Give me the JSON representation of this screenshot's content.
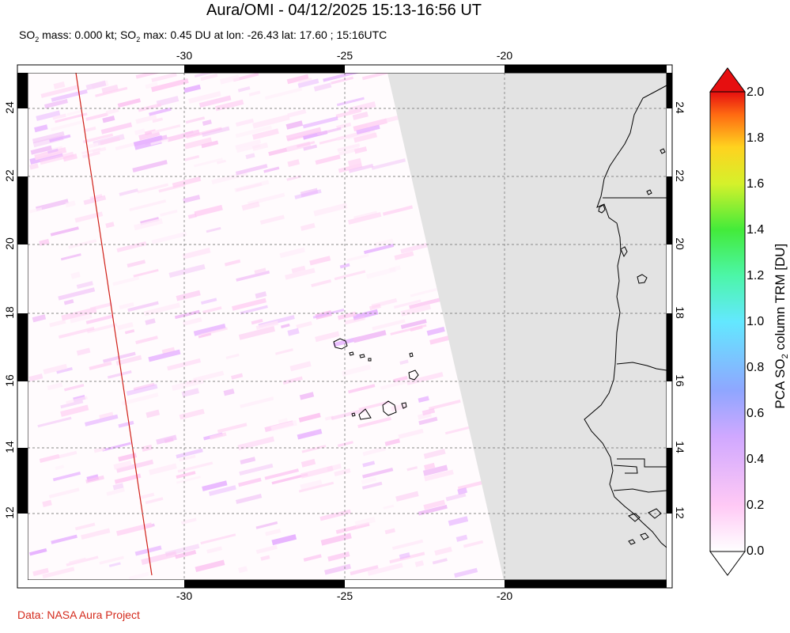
{
  "header": {
    "title": "Aura/OMI - 04/12/2025 15:13-16:56 UT",
    "subtitle_parts": [
      "SO",
      "2",
      " mass: 0.000 kt; SO",
      "2",
      " max: 0.45 DU at lon: -26.43 lat: 17.60 ; 15:16UTC"
    ]
  },
  "map": {
    "lon_range": [
      -35,
      -15
    ],
    "lat_range": [
      10,
      25
    ],
    "lon_ticks": [
      "-30",
      "-25",
      "-20"
    ],
    "lat_ticks": [
      "24",
      "22",
      "20",
      "18",
      "16",
      "14",
      "12"
    ],
    "grid": "dashed",
    "no_data_color": "#e3e3e3",
    "coastline_color": "#000000",
    "swath_edge_color": "#d02018"
  },
  "colorbar": {
    "label_parts": [
      "PCA SO",
      "2",
      " column TRM [DU]"
    ],
    "ticks": [
      "2.0",
      "1.8",
      "1.6",
      "1.4",
      "1.2",
      "1.0",
      "0.8",
      "0.6",
      "0.4",
      "0.2",
      "0.0"
    ],
    "range": [
      0.0,
      2.0
    ],
    "colors": [
      "#ffffff",
      "#ffc9f5",
      "#d0a8ff",
      "#8fa6ff",
      "#63e8ff",
      "#4cf6a8",
      "#43eb3a",
      "#d5f12b",
      "#ffd21f",
      "#ff6b12",
      "#e60f10"
    ]
  },
  "footer": {
    "credit": "Data: NASA Aura Project"
  }
}
